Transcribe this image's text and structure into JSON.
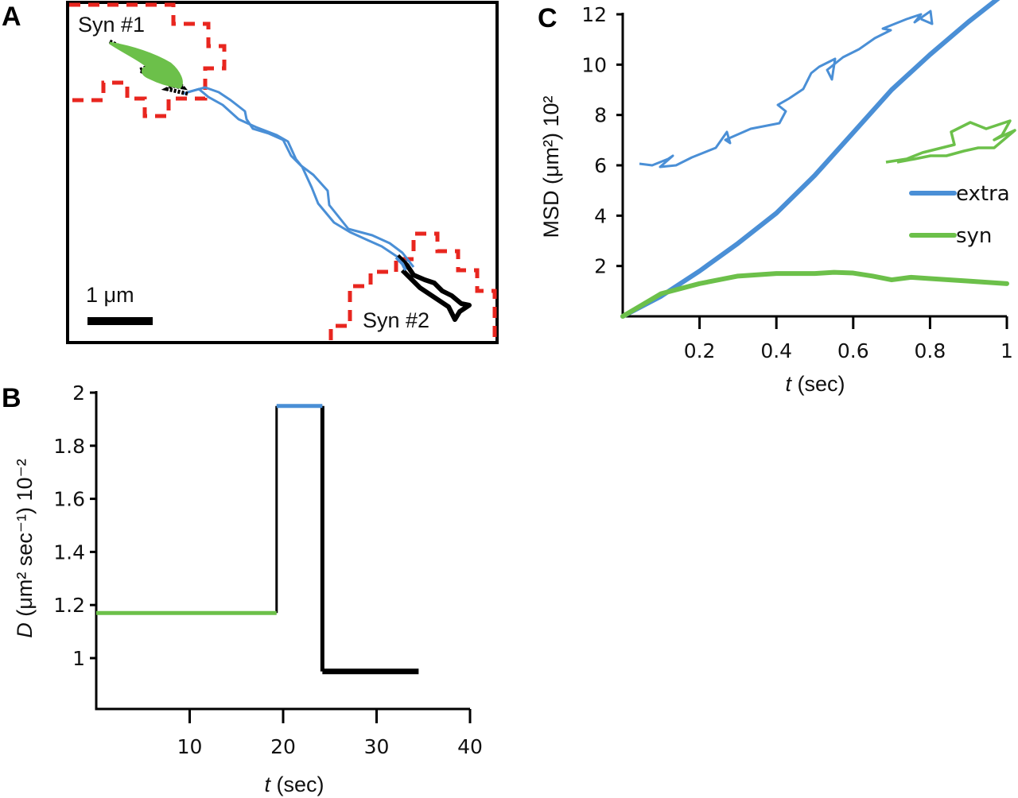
{
  "colors": {
    "extra": "#4a8fd6",
    "syn": "#6cc04a",
    "late": "#000000",
    "roi": "#e8261f",
    "axis": "#000000"
  },
  "panels": {
    "A": {
      "letter": "A",
      "labels": {
        "syn1": "Syn #1",
        "syn2": "Syn #2",
        "scale": "1 μm"
      },
      "description": "Single-particle trajectory moving from synapse #1 (green) through extrasynaptic space (blue) into synapse #2 (black); red dashed outlines mark synaptic regions"
    },
    "B": {
      "letter": "B"
    },
    "C": {
      "letter": "C"
    }
  },
  "chart_data": [
    {
      "panel": "B",
      "type": "line",
      "title": "",
      "xlabel_italic": "t",
      "xlabel_rest": " (sec)",
      "ylabel_italic": "D",
      "ylabel_rest": " (μm² sec⁻¹) 10⁻²",
      "xlim": [
        0,
        40
      ],
      "ylim": [
        0.8,
        2
      ],
      "xticks": [
        10,
        20,
        30,
        40
      ],
      "xtick_labels": [
        "10",
        "20",
        "30",
        "40"
      ],
      "yticks": [
        1,
        1.2,
        1.4,
        1.6,
        1.8,
        2
      ],
      "ytick_labels": [
        "1",
        "1.2",
        "1.4",
        "1.6",
        "1.8",
        "2"
      ],
      "grid": false,
      "series": [
        {
          "name": "syn #1",
          "color_key": "syn",
          "x": [
            0,
            19.3
          ],
          "y": [
            1.17,
            1.17
          ]
        },
        {
          "name": "extra",
          "color_key": "extra",
          "x": [
            19.3,
            24.2
          ],
          "y": [
            1.95,
            1.95
          ]
        },
        {
          "name": "syn #2",
          "color_key": "late",
          "x": [
            24.2,
            34.5
          ],
          "y": [
            0.95,
            0.95
          ]
        }
      ],
      "transitions": [
        {
          "x": 19.3,
          "from": 1.17,
          "to": 1.95
        },
        {
          "x": 24.2,
          "from": 1.95,
          "to": 0.95
        }
      ]
    },
    {
      "panel": "C",
      "type": "line",
      "title": "",
      "xlabel_italic": "t",
      "xlabel_rest": " (sec)",
      "ylabel": "MSD (μm²) 10²",
      "xlim": [
        0,
        1
      ],
      "ylim": [
        0,
        12
      ],
      "xticks": [
        0.2,
        0.4,
        0.6,
        0.8,
        1
      ],
      "xtick_labels": [
        "0.2",
        "0.4",
        "0.6",
        "0.8",
        "1"
      ],
      "yticks": [
        2,
        4,
        6,
        8,
        10,
        12
      ],
      "ytick_labels": [
        "2",
        "4",
        "6",
        "8",
        "10",
        "12"
      ],
      "grid": false,
      "legend": {
        "placement": "right",
        "entries": [
          {
            "label": "extra",
            "color_key": "extra"
          },
          {
            "label": "syn",
            "color_key": "syn"
          }
        ]
      },
      "series": [
        {
          "name": "extra",
          "color_key": "extra",
          "x": [
            0,
            0.1,
            0.2,
            0.3,
            0.4,
            0.5,
            0.6,
            0.7,
            0.8,
            0.9,
            1.0
          ],
          "y": [
            0,
            0.8,
            1.8,
            2.9,
            4.1,
            5.6,
            7.3,
            9.0,
            10.4,
            11.7,
            12.9
          ]
        },
        {
          "name": "syn",
          "color_key": "syn",
          "x": [
            0,
            0.1,
            0.2,
            0.3,
            0.4,
            0.5,
            0.55,
            0.6,
            0.65,
            0.7,
            0.75,
            0.8,
            0.9,
            1.0
          ],
          "y": [
            0,
            0.9,
            1.3,
            1.6,
            1.7,
            1.7,
            1.75,
            1.72,
            1.6,
            1.45,
            1.55,
            1.5,
            1.4,
            1.3
          ]
        }
      ],
      "inset_traces": [
        {
          "name": "extra-trajectory",
          "color_key": "extra",
          "description": "scribbled trajectory drawn in upper-left of plot area"
        },
        {
          "name": "syn-trajectory",
          "color_key": "syn",
          "description": "scribbled trajectory drawn at right, above legend"
        }
      ]
    }
  ]
}
